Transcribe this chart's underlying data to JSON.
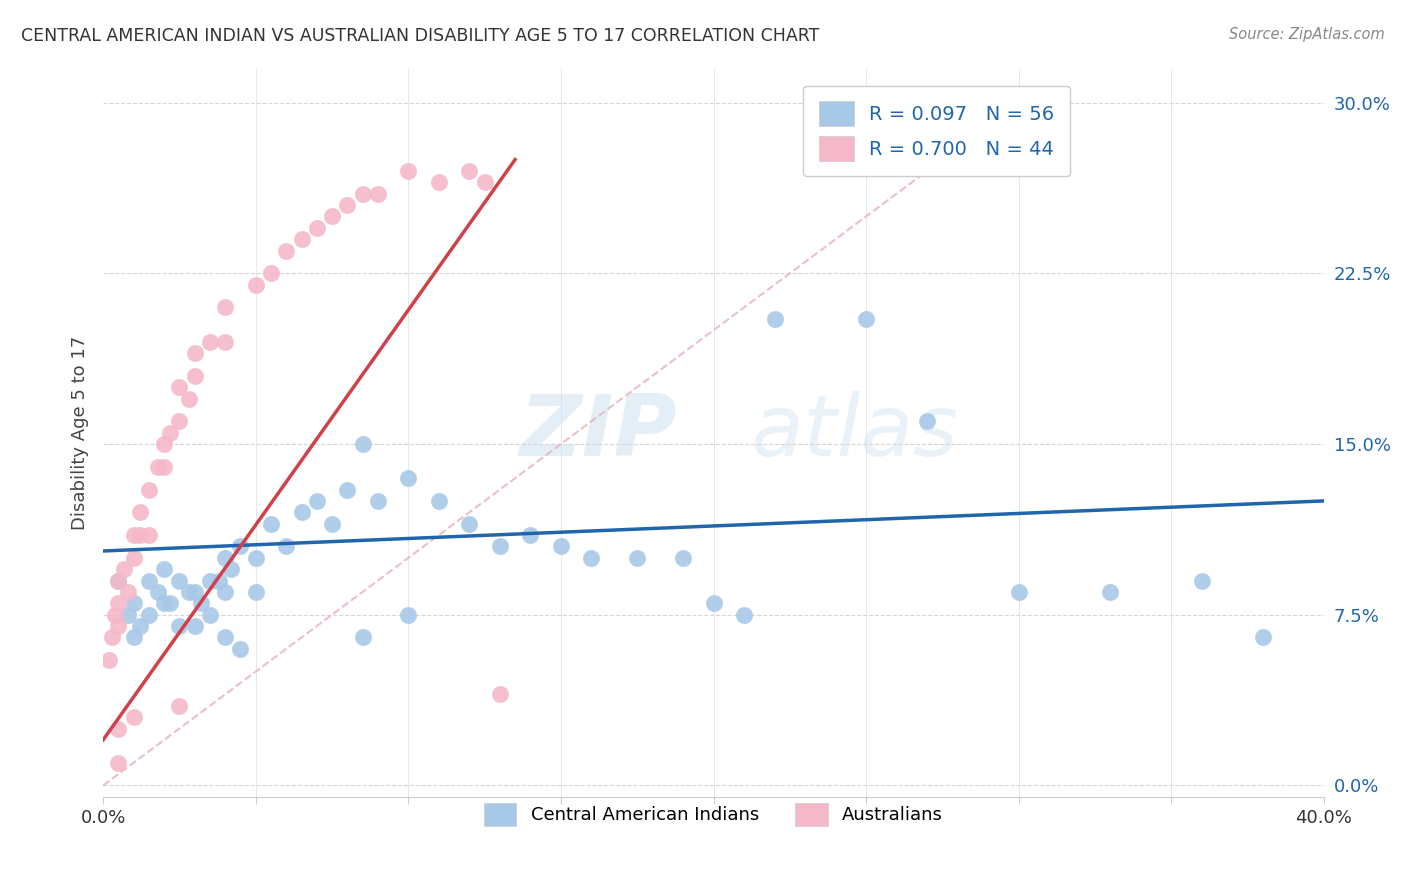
{
  "title": "CENTRAL AMERICAN INDIAN VS AUSTRALIAN DISABILITY AGE 5 TO 17 CORRELATION CHART",
  "source": "Source: ZipAtlas.com",
  "ylabel": "Disability Age 5 to 17",
  "ytick_labels": [
    "0.0%",
    "7.5%",
    "15.0%",
    "22.5%",
    "30.0%"
  ],
  "ytick_values": [
    0.0,
    0.075,
    0.15,
    0.225,
    0.3
  ],
  "xmin": 0.0,
  "xmax": 0.4,
  "ymin": -0.005,
  "ymax": 0.315,
  "legend_r1": "R = 0.097",
  "legend_n1": "N = 56",
  "legend_r2": "R = 0.700",
  "legend_n2": "N = 44",
  "color_blue": "#a8c8e8",
  "color_pink": "#f4b8c8",
  "color_trendline_blue": "#2166ac",
  "color_trendline_pink": "#d0404a",
  "color_diagonal": "#e8b0b8",
  "watermark_zip": "ZIP",
  "watermark_atlas": "atlas",
  "blue_scatter_x": [
    0.005,
    0.008,
    0.01,
    0.01,
    0.012,
    0.015,
    0.015,
    0.018,
    0.02,
    0.02,
    0.022,
    0.025,
    0.025,
    0.028,
    0.03,
    0.03,
    0.032,
    0.035,
    0.035,
    0.038,
    0.04,
    0.04,
    0.042,
    0.045,
    0.05,
    0.05,
    0.055,
    0.06,
    0.065,
    0.07,
    0.075,
    0.08,
    0.085,
    0.09,
    0.1,
    0.11,
    0.12,
    0.13,
    0.14,
    0.15,
    0.16,
    0.175,
    0.19,
    0.22,
    0.25,
    0.27,
    0.3,
    0.33,
    0.36,
    0.38,
    0.2,
    0.21,
    0.1,
    0.085,
    0.04,
    0.045
  ],
  "blue_scatter_y": [
    0.09,
    0.075,
    0.08,
    0.065,
    0.07,
    0.09,
    0.075,
    0.085,
    0.095,
    0.08,
    0.08,
    0.09,
    0.07,
    0.085,
    0.085,
    0.07,
    0.08,
    0.09,
    0.075,
    0.09,
    0.1,
    0.085,
    0.095,
    0.105,
    0.1,
    0.085,
    0.115,
    0.105,
    0.12,
    0.125,
    0.115,
    0.13,
    0.15,
    0.125,
    0.135,
    0.125,
    0.115,
    0.105,
    0.11,
    0.105,
    0.1,
    0.1,
    0.1,
    0.205,
    0.205,
    0.16,
    0.085,
    0.085,
    0.09,
    0.065,
    0.08,
    0.075,
    0.075,
    0.065,
    0.065,
    0.06
  ],
  "pink_scatter_x": [
    0.002,
    0.003,
    0.004,
    0.005,
    0.005,
    0.005,
    0.007,
    0.008,
    0.01,
    0.01,
    0.012,
    0.012,
    0.015,
    0.015,
    0.018,
    0.02,
    0.02,
    0.022,
    0.025,
    0.025,
    0.028,
    0.03,
    0.03,
    0.035,
    0.04,
    0.04,
    0.05,
    0.055,
    0.06,
    0.065,
    0.07,
    0.075,
    0.08,
    0.085,
    0.09,
    0.1,
    0.11,
    0.12,
    0.125,
    0.005,
    0.005,
    0.01,
    0.025,
    0.13
  ],
  "pink_scatter_y": [
    0.055,
    0.065,
    0.075,
    0.08,
    0.09,
    0.07,
    0.095,
    0.085,
    0.1,
    0.11,
    0.11,
    0.12,
    0.13,
    0.11,
    0.14,
    0.14,
    0.15,
    0.155,
    0.16,
    0.175,
    0.17,
    0.18,
    0.19,
    0.195,
    0.21,
    0.195,
    0.22,
    0.225,
    0.235,
    0.24,
    0.245,
    0.25,
    0.255,
    0.26,
    0.26,
    0.27,
    0.265,
    0.27,
    0.265,
    0.01,
    0.025,
    0.03,
    0.035,
    0.04
  ],
  "blue_trendline": [
    0.0,
    0.4,
    0.103,
    0.125
  ],
  "pink_trendline": [
    0.0,
    0.135,
    0.02,
    0.275
  ],
  "diagonal_line": [
    0.0,
    0.305,
    0.0,
    0.305
  ]
}
